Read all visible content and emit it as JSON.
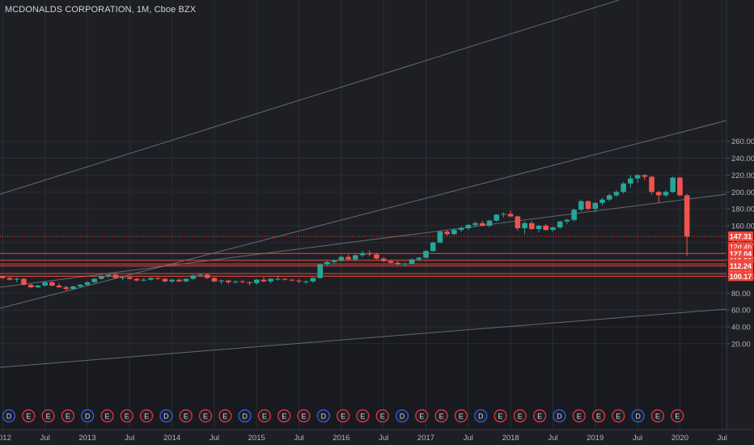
{
  "header": {
    "title": "MCDONALDS CORPORATION, 1M, Cboe BZX"
  },
  "colors": {
    "background": "#1e1f24",
    "up": "#26a69a",
    "down": "#ef5350",
    "grid": "#2a2d35",
    "axis_text": "#b2b5be",
    "trendline": "#787b86",
    "hline": "#f0473c",
    "dividend_marker": "#2962ff",
    "earnings_marker": "#f23645"
  },
  "chart_data": {
    "type": "candlestick",
    "ylim": [
      12,
      262
    ],
    "y_ticks": [
      "20.00",
      "40.00",
      "60.00",
      "80.00",
      "100.00",
      "120.00",
      "140.00",
      "160.00",
      "180.00",
      "200.00",
      "220.00",
      "240.00",
      "260.00"
    ],
    "x_ticks": [
      {
        "label": "2012",
        "m": 0
      },
      {
        "label": "Jul",
        "m": 6
      },
      {
        "label": "2013",
        "m": 12
      },
      {
        "label": "Jul",
        "m": 18
      },
      {
        "label": "2014",
        "m": 24
      },
      {
        "label": "Jul",
        "m": 30
      },
      {
        "label": "2015",
        "m": 36
      },
      {
        "label": "Jul",
        "m": 42
      },
      {
        "label": "2016",
        "m": 48
      },
      {
        "label": "Jul",
        "m": 54
      },
      {
        "label": "2017",
        "m": 60
      },
      {
        "label": "Jul",
        "m": 66
      },
      {
        "label": "2018",
        "m": 72
      },
      {
        "label": "Jul",
        "m": 78
      },
      {
        "label": "2019",
        "m": 84
      },
      {
        "label": "Jul",
        "m": 90
      },
      {
        "label": "2020",
        "m": 96
      },
      {
        "label": "Jul",
        "m": 102
      }
    ],
    "candles": [
      [
        100,
        101,
        97,
        98
      ],
      [
        98,
        100,
        95,
        96
      ],
      [
        96,
        99,
        93,
        97
      ],
      [
        97,
        98,
        89,
        90
      ],
      [
        90,
        92,
        86,
        87
      ],
      [
        87,
        90,
        86,
        89
      ],
      [
        89,
        94,
        88,
        93
      ],
      [
        93,
        94,
        88,
        89
      ],
      [
        89,
        92,
        86,
        87
      ],
      [
        87,
        89,
        83,
        85
      ],
      [
        85,
        89,
        84,
        88
      ],
      [
        88,
        91,
        86,
        90
      ],
      [
        90,
        94,
        89,
        93
      ],
      [
        93,
        98,
        92,
        97
      ],
      [
        97,
        101,
        96,
        100
      ],
      [
        100,
        103,
        98,
        102
      ],
      [
        102,
        103,
        97,
        98
      ],
      [
        98,
        100,
        95,
        99
      ],
      [
        99,
        100,
        96,
        97
      ],
      [
        97,
        98,
        94,
        95
      ],
      [
        95,
        98,
        94,
        96
      ],
      [
        96,
        99,
        95,
        98
      ],
      [
        98,
        99,
        96,
        97
      ],
      [
        97,
        98,
        93,
        94
      ],
      [
        94,
        97,
        92,
        96
      ],
      [
        96,
        97,
        93,
        94
      ],
      [
        94,
        98,
        93,
        97
      ],
      [
        97,
        102,
        96,
        101
      ],
      [
        101,
        103,
        100,
        102
      ],
      [
        102,
        103,
        97,
        98
      ],
      [
        98,
        99,
        93,
        94
      ],
      [
        94,
        96,
        91,
        95
      ],
      [
        95,
        96,
        91,
        93
      ],
      [
        93,
        95,
        91,
        94
      ],
      [
        94,
        96,
        92,
        93
      ],
      [
        93,
        94,
        89,
        92
      ],
      [
        92,
        97,
        90,
        96
      ],
      [
        96,
        99,
        93,
        94
      ],
      [
        94,
        98,
        92,
        97
      ],
      [
        97,
        101,
        95,
        97
      ],
      [
        97,
        98,
        95,
        96
      ],
      [
        96,
        97,
        94,
        95
      ],
      [
        95,
        97,
        92,
        94
      ],
      [
        94,
        95,
        91,
        94
      ],
      [
        94,
        99,
        92,
        98
      ],
      [
        98,
        115,
        97,
        114
      ],
      [
        114,
        118,
        112,
        117
      ],
      [
        117,
        120,
        114,
        119
      ],
      [
        119,
        125,
        117,
        123
      ],
      [
        123,
        126,
        119,
        120
      ],
      [
        120,
        126,
        118,
        125
      ],
      [
        125,
        130,
        123,
        127
      ],
      [
        127,
        131,
        124,
        126
      ],
      [
        126,
        128,
        120,
        121
      ],
      [
        121,
        123,
        117,
        118
      ],
      [
        118,
        120,
        115,
        116
      ],
      [
        116,
        118,
        113,
        114
      ],
      [
        114,
        116,
        112,
        115
      ],
      [
        115,
        121,
        114,
        120
      ],
      [
        120,
        123,
        118,
        122
      ],
      [
        122,
        131,
        121,
        130
      ],
      [
        130,
        141,
        129,
        140
      ],
      [
        140,
        154,
        139,
        153
      ],
      [
        153,
        155,
        148,
        150
      ],
      [
        150,
        157,
        149,
        155
      ],
      [
        155,
        159,
        153,
        157
      ],
      [
        157,
        162,
        155,
        161
      ],
      [
        161,
        165,
        158,
        163
      ],
      [
        163,
        166,
        159,
        160
      ],
      [
        160,
        167,
        158,
        166
      ],
      [
        166,
        174,
        165,
        173
      ],
      [
        173,
        176,
        170,
        174
      ],
      [
        174,
        178,
        170,
        171
      ],
      [
        171,
        172,
        154,
        157
      ],
      [
        157,
        165,
        150,
        163
      ],
      [
        163,
        166,
        155,
        156
      ],
      [
        156,
        161,
        152,
        160
      ],
      [
        160,
        162,
        154,
        155
      ],
      [
        155,
        159,
        153,
        158
      ],
      [
        158,
        166,
        156,
        165
      ],
      [
        165,
        168,
        162,
        167
      ],
      [
        167,
        180,
        165,
        179
      ],
      [
        179,
        191,
        177,
        189
      ],
      [
        189,
        190,
        178,
        180
      ],
      [
        180,
        188,
        176,
        187
      ],
      [
        187,
        193,
        184,
        191
      ],
      [
        191,
        198,
        189,
        196
      ],
      [
        196,
        202,
        194,
        200
      ],
      [
        200,
        212,
        198,
        210
      ],
      [
        210,
        220,
        205,
        216
      ],
      [
        216,
        221,
        211,
        220
      ],
      [
        220,
        221,
        214,
        218
      ],
      [
        218,
        219,
        197,
        200
      ],
      [
        200,
        201,
        187,
        196
      ],
      [
        196,
        202,
        194,
        200
      ],
      [
        200,
        218,
        199,
        217
      ],
      [
        217,
        218,
        195,
        196
      ],
      [
        196,
        198,
        124,
        147
      ]
    ],
    "price_lines": [
      "147.31",
      "127.04",
      "118.86",
      "114.58",
      "112.24",
      "103.29",
      "100.17"
    ],
    "countdown": "12d 4h",
    "markers": [
      "D",
      "E",
      "E",
      "E",
      "D",
      "E",
      "E",
      "E",
      "D",
      "E",
      "E",
      "E",
      "D",
      "E",
      "E",
      "E",
      "D",
      "E",
      "E",
      "E",
      "D",
      "E",
      "E",
      "E",
      "D",
      "E",
      "E",
      "E",
      "D",
      "E",
      "E",
      "E",
      "D",
      "E",
      "E"
    ]
  }
}
